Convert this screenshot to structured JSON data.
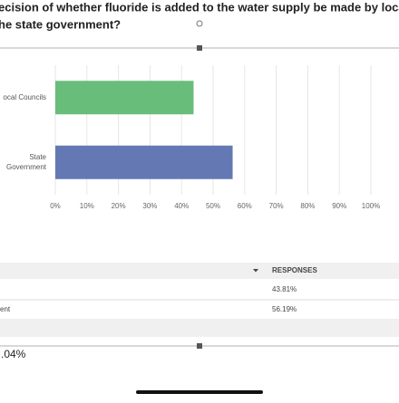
{
  "question": {
    "lines": [
      "ecision of whether fluoride is added to the water supply be made by loca",
      "he state government?"
    ]
  },
  "chart_data": {
    "type": "bar",
    "orientation": "horizontal",
    "categories": [
      [
        "ocal Councils"
      ],
      [
        "State",
        "Government"
      ]
    ],
    "values": [
      43.81,
      56.19
    ],
    "colors": [
      "#68bd7a",
      "#6479b3"
    ],
    "xlim": [
      0,
      100
    ],
    "xticks": [
      {
        "value": 0,
        "label": "0%"
      },
      {
        "value": 10,
        "label": "10%"
      },
      {
        "value": 20,
        "label": "20%"
      },
      {
        "value": 30,
        "label": "30%"
      },
      {
        "value": 40,
        "label": "40%"
      },
      {
        "value": 50,
        "label": "50%"
      },
      {
        "value": 60,
        "label": "60%"
      },
      {
        "value": 70,
        "label": "70%"
      },
      {
        "value": 80,
        "label": "80%"
      },
      {
        "value": 90,
        "label": "90%"
      },
      {
        "value": 100,
        "label": "100%"
      }
    ],
    "grid": true
  },
  "table": {
    "header": "RESPONSES",
    "rows": [
      [
        "",
        "43.81%"
      ],
      [
        "ent",
        "56.19%"
      ]
    ]
  },
  "footer": ".04%"
}
